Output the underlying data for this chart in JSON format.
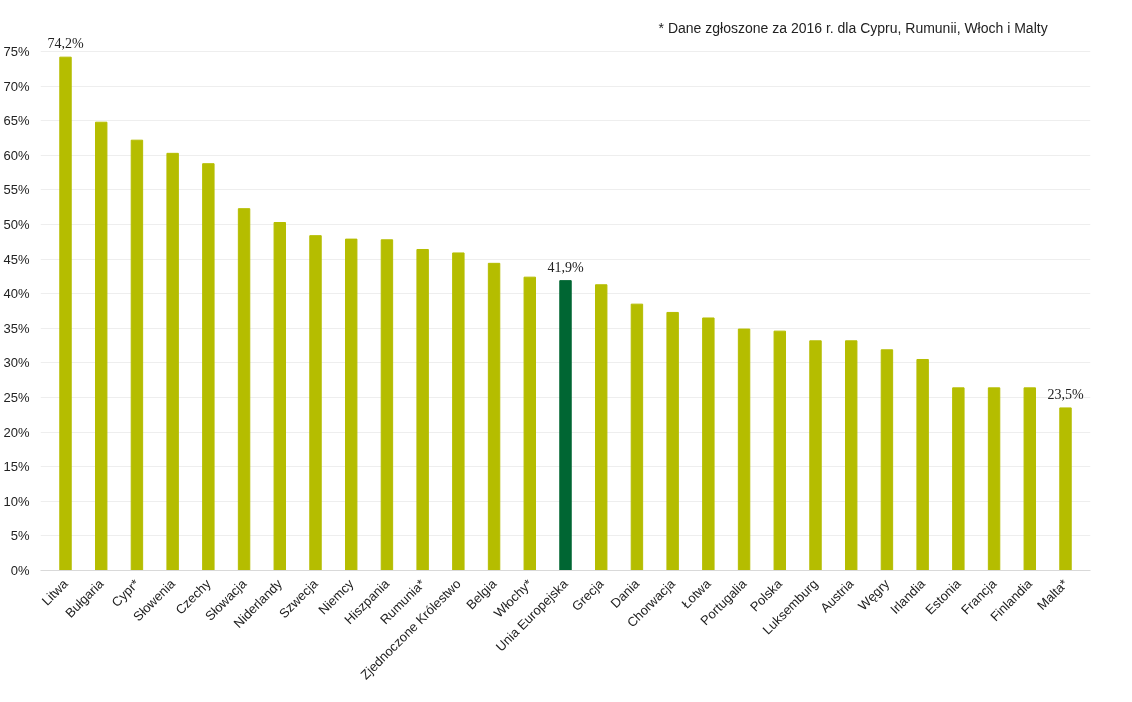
{
  "chart_data": {
    "type": "bar",
    "categories": [
      "Litwa",
      "Bułgaria",
      "Cypr*",
      "Słowenia",
      "Czechy",
      "Słowacja",
      "Niderlandy",
      "Szwecja",
      "Niemcy",
      "Hiszpania",
      "Rumunia*",
      "Zjednoczone Królestwo",
      "Belgia",
      "Włochy*",
      "Unia Europejska",
      "Grecja",
      "Dania",
      "Chorwacja",
      "Łotwa",
      "Portugalia",
      "Polska",
      "Luksemburg",
      "Austria",
      "Węgry",
      "Irlandia",
      "Estonia",
      "Francja",
      "Finlandia",
      "Malta*"
    ],
    "values": [
      74.2,
      64.8,
      62.2,
      60.3,
      58.8,
      52.3,
      50.3,
      48.4,
      47.9,
      47.8,
      46.4,
      45.9,
      44.4,
      42.4,
      41.9,
      41.3,
      38.5,
      37.3,
      36.5,
      34.9,
      34.6,
      33.2,
      33.2,
      31.9,
      30.5,
      26.4,
      26.4,
      26.4,
      23.5
    ],
    "colors": [
      "#b5bd00",
      "#b5bd00",
      "#b5bd00",
      "#b5bd00",
      "#b5bd00",
      "#b5bd00",
      "#b5bd00",
      "#b5bd00",
      "#b5bd00",
      "#b5bd00",
      "#b5bd00",
      "#b5bd00",
      "#b5bd00",
      "#b5bd00",
      "#006633",
      "#b5bd00",
      "#b5bd00",
      "#b5bd00",
      "#b5bd00",
      "#b5bd00",
      "#b5bd00",
      "#b5bd00",
      "#b5bd00",
      "#b5bd00",
      "#b5bd00",
      "#b5bd00",
      "#b5bd00",
      "#b5bd00",
      "#b5bd00"
    ],
    "value_labels": [
      "74,2%",
      null,
      null,
      null,
      null,
      null,
      null,
      null,
      null,
      null,
      null,
      null,
      null,
      null,
      "41,9%",
      null,
      null,
      null,
      null,
      null,
      null,
      null,
      null,
      null,
      null,
      null,
      null,
      null,
      "23,5%"
    ],
    "ylim": [
      0,
      75
    ],
    "yticks": [
      {
        "value": 0,
        "label": "0%"
      },
      {
        "value": 5,
        "label": "5%"
      },
      {
        "value": 10,
        "label": "10%"
      },
      {
        "value": 15,
        "label": "15%"
      },
      {
        "value": 20,
        "label": "20%"
      },
      {
        "value": 25,
        "label": "25%"
      },
      {
        "value": 30,
        "label": "30%"
      },
      {
        "value": 35,
        "label": "35%"
      },
      {
        "value": 40,
        "label": "40%"
      },
      {
        "value": 45,
        "label": "45%"
      },
      {
        "value": 50,
        "label": "50%"
      },
      {
        "value": 55,
        "label": "55%"
      },
      {
        "value": 60,
        "label": "60%"
      },
      {
        "value": 65,
        "label": "65%"
      },
      {
        "value": 70,
        "label": "70%"
      },
      {
        "value": 75,
        "label": "75%"
      }
    ],
    "grid": "y",
    "annotations": [
      "* Dane zgłoszone za 2016 r. dla Cypru, Rumunii, Włoch i Malty"
    ]
  }
}
